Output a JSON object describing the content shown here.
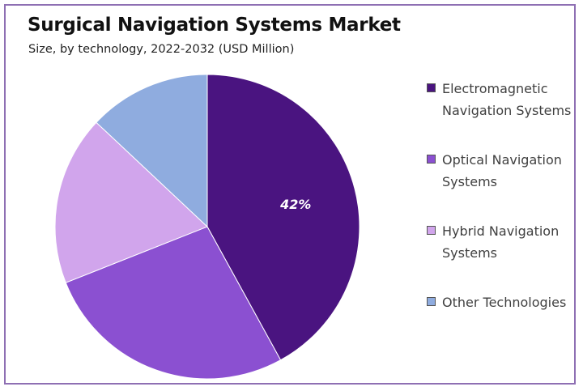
{
  "chart_data": {
    "type": "pie",
    "title": "Surgical Navigation Systems Market",
    "subtitle": "Size, by technology, 2022-2032 (USD Million)",
    "categories": [
      "Electromagnetic Navigation Systems",
      "Optical Navigation Systems",
      "Hybrid Navigation Systems",
      "Other Technologies"
    ],
    "values": [
      42,
      27,
      18,
      13
    ],
    "data_labels": [
      "42%",
      "",
      "",
      ""
    ],
    "colors": [
      "#4a1480",
      "#8b50d1",
      "#d1a5ec",
      "#8facdf"
    ],
    "legend_placement": "right"
  }
}
